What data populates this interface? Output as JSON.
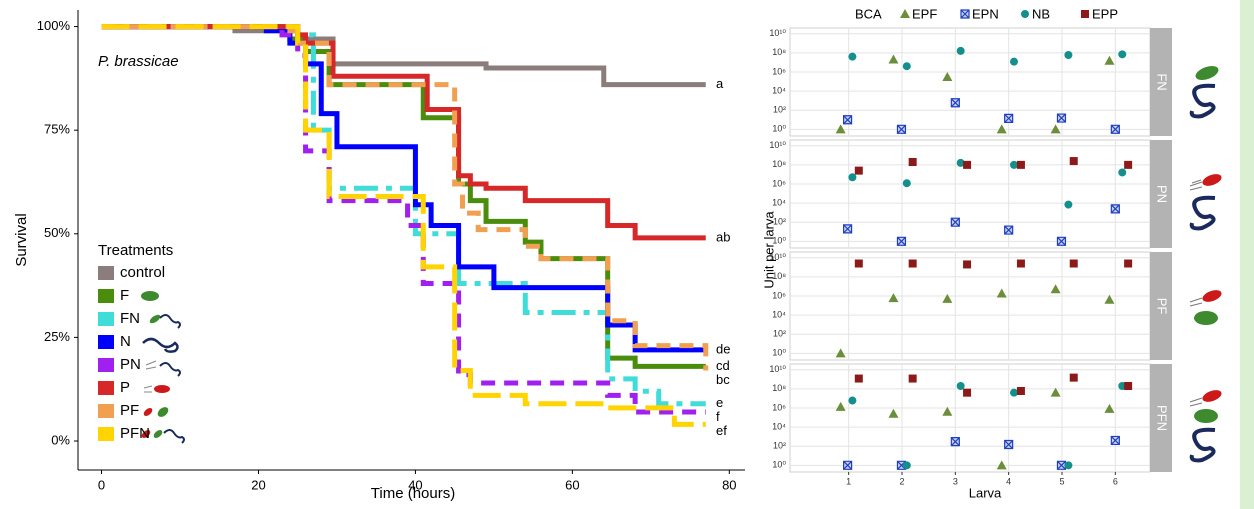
{
  "chart_data": [
    {
      "type": "line",
      "step": true,
      "annotation": "P. brassicae",
      "xlabel": "Time (hours)",
      "ylabel": "Survival",
      "xlim": [
        -3,
        82
      ],
      "ylim": [
        -7,
        104
      ],
      "xticks": [
        0,
        20,
        40,
        60,
        80
      ],
      "yticks": [
        {
          "value": 0,
          "label": "0%"
        },
        {
          "value": 25,
          "label": "25%"
        },
        {
          "value": 50,
          "label": "50%"
        },
        {
          "value": 75,
          "label": "75%"
        },
        {
          "value": 100,
          "label": "100%"
        }
      ],
      "legend_title": "Treatments",
      "series": [
        {
          "name": "control",
          "color": "#8b7d7b",
          "linestyle": "solid",
          "end_label": "a",
          "x": [
            0,
            17,
            25,
            29.5,
            49,
            64,
            77
          ],
          "values": [
            100,
            99,
            97,
            91,
            90,
            86,
            86
          ]
        },
        {
          "name": "F",
          "color": "#4a8c0c",
          "linestyle": "solid",
          "end_label": "cd",
          "x": [
            0,
            24,
            26,
            29,
            41,
            45.5,
            47,
            49,
            54,
            56,
            64.5,
            68,
            77
          ],
          "values": [
            100,
            97,
            94,
            86,
            78,
            62,
            58,
            53,
            48,
            44,
            20,
            18,
            18
          ]
        },
        {
          "name": "FN",
          "color": "#40dcd8",
          "linestyle": "dotdash",
          "end_label": "e",
          "x": [
            0,
            25,
            27,
            29,
            40,
            45.5,
            54,
            64.5,
            68,
            71,
            77
          ],
          "values": [
            100,
            98,
            75,
            61,
            50,
            38,
            31,
            15,
            12,
            9,
            9
          ]
        },
        {
          "name": "N",
          "color": "#0000ff",
          "linestyle": "solid",
          "end_label": "de",
          "x": [
            0,
            21,
            24,
            26,
            28,
            30,
            40,
            42,
            45.5,
            50,
            64.5,
            68,
            77
          ],
          "values": [
            100,
            99,
            96,
            91,
            79,
            71,
            57,
            52,
            42,
            37,
            28,
            22,
            22
          ]
        },
        {
          "name": "PN",
          "color": "#a020f0",
          "linestyle": "dashed",
          "end_label": "f",
          "x": [
            0,
            23,
            25,
            26,
            29,
            39,
            41,
            45.5,
            47,
            64.5,
            68,
            77
          ],
          "values": [
            100,
            98,
            93,
            70,
            58,
            52,
            38,
            16,
            14,
            11,
            7,
            7
          ]
        },
        {
          "name": "P",
          "color": "#d62828",
          "linestyle": "solid",
          "end_label": "ab",
          "x": [
            0,
            25,
            26,
            29.5,
            41.5,
            45.5,
            47,
            49,
            54,
            64.5,
            68,
            77
          ],
          "values": [
            100,
            98,
            96,
            88,
            80,
            64,
            62,
            61,
            58,
            52,
            49,
            49
          ]
        },
        {
          "name": "PF",
          "color": "#f0a050",
          "linestyle": "dashed",
          "end_label": "bc",
          "x": [
            0,
            24,
            25,
            29,
            45,
            46,
            48,
            54,
            56,
            64.5,
            68,
            77
          ],
          "values": [
            100,
            99,
            96,
            86,
            62,
            55,
            51,
            47,
            44,
            29,
            23,
            17
          ]
        },
        {
          "name": "PFN",
          "color": "#ffd400",
          "linestyle": "longdash",
          "end_label": "ef",
          "x": [
            0,
            25,
            26,
            29,
            41,
            45,
            47,
            54,
            64,
            73,
            77
          ],
          "values": [
            100,
            96,
            75,
            59,
            42,
            17,
            11,
            9,
            8,
            4,
            4
          ]
        }
      ]
    },
    {
      "type": "scatter",
      "ylog": true,
      "xlabel": "Larva",
      "ylabel": "Unit per larva",
      "legend_title": "BCA",
      "grid": true,
      "xlim": [
        -0.1,
        6.65
      ],
      "xticks": [
        1,
        2,
        3,
        4,
        5,
        6
      ],
      "ylim": [
        0.2,
        40000000000
      ],
      "yticks": [
        {
          "value": 1,
          "label": "10⁰"
        },
        {
          "value": 100,
          "label": "10²"
        },
        {
          "value": 10000,
          "label": "10⁴"
        },
        {
          "value": 1000000,
          "label": "10⁶"
        },
        {
          "value": 100000000,
          "label": "10⁸"
        },
        {
          "value": 10000000000,
          "label": "10¹⁰"
        }
      ],
      "series": [
        {
          "name": "EPF",
          "color": "#6b8e3a",
          "marker": "triangle"
        },
        {
          "name": "EPN",
          "color": "#1f3fbf",
          "marker": "square-x"
        },
        {
          "name": "NB",
          "color": "#13908c",
          "marker": "circle"
        },
        {
          "name": "EPP",
          "color": "#8b1a1a",
          "marker": "square"
        }
      ],
      "facets": [
        {
          "label": "FN",
          "series": [
            {
              "x": [
                0.85,
                1.84,
                2.85,
                3.87,
                4.88,
                5.89
              ],
              "values": [
                1,
                20000000,
                300000,
                1,
                1,
                15000000
              ]
            },
            {
              "x": [
                0.98,
                1.99,
                3.0,
                4.0,
                4.99,
                6.0
              ],
              "values": [
                10,
                1,
                600,
                14,
                15,
                1
              ]
            },
            {
              "x": [
                1.07,
                2.09,
                3.1,
                4.1,
                5.12,
                6.13
              ],
              "values": [
                40000000,
                4000000,
                160000000,
                12000000,
                60000000,
                70000000
              ]
            },
            {
              "x": [],
              "values": []
            }
          ]
        },
        {
          "label": "PN",
          "series": [
            {
              "x": [],
              "values": []
            },
            {
              "x": [
                0.98,
                1.99,
                3.0,
                4.0,
                4.99,
                6.0
              ],
              "values": [
                20,
                1,
                100,
                15,
                1,
                2500
              ]
            },
            {
              "x": [
                1.07,
                2.09,
                3.1,
                4.1,
                5.12,
                6.13
              ],
              "values": [
                5000000,
                1200000,
                160000000,
                100000000,
                7000,
                16000000
              ]
            },
            {
              "x": [
                1.19,
                2.2,
                3.22,
                4.23,
                5.22,
                6.24
              ],
              "values": [
                25000000,
                200000000,
                100000000,
                100000000,
                250000000,
                100000000
              ]
            }
          ]
        },
        {
          "label": "PF",
          "series": [
            {
              "x": [
                0.85,
                1.84,
                2.85,
                3.87,
                4.88,
                5.89
              ],
              "values": [
                1,
                600000,
                500000,
                1800000,
                5000000,
                400000
              ]
            },
            {
              "x": [],
              "values": []
            },
            {
              "x": [],
              "values": []
            },
            {
              "x": [
                1.19,
                2.2,
                3.22,
                4.23,
                5.22,
                6.24
              ],
              "values": [
                2500000000,
                2500000000,
                2000000000,
                2500000000,
                2500000000,
                2500000000
              ]
            }
          ]
        },
        {
          "label": "PFN",
          "series": [
            {
              "x": [
                0.85,
                1.84,
                2.85,
                3.87,
                4.88,
                5.89
              ],
              "values": [
                1300000,
                250000,
                400000,
                1,
                40000000,
                800000
              ]
            },
            {
              "x": [
                0.98,
                1.99,
                3.0,
                4.0,
                4.99,
                6.0
              ],
              "values": [
                1,
                1,
                300,
                150,
                1,
                400
              ]
            },
            {
              "x": [
                1.07,
                2.09,
                3.1,
                4.1,
                5.12,
                6.13
              ],
              "values": [
                6000000,
                1,
                200000000,
                40000000,
                1,
                200000000
              ]
            },
            {
              "x": [
                1.19,
                2.2,
                3.22,
                4.23,
                5.22,
                6.24
              ],
              "values": [
                1200000000,
                1200000000,
                40000000,
                60000000,
                1500000000,
                200000000
              ]
            }
          ]
        }
      ]
    }
  ]
}
